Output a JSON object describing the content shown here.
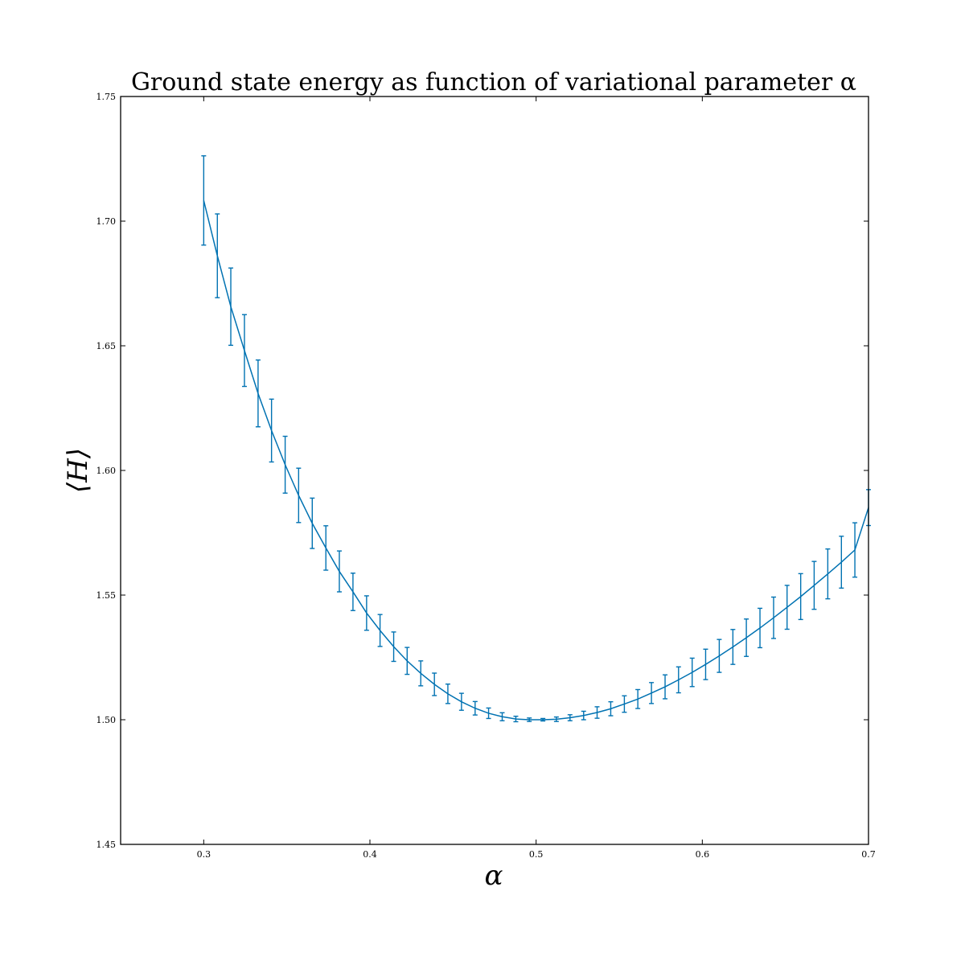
{
  "chart_data": {
    "type": "line",
    "title": "Ground state energy as function of variational parameter α",
    "xlabel": "α",
    "ylabel": "⟨H⟩",
    "xlim": [
      0.25,
      0.7
    ],
    "ylim": [
      1.45,
      1.75
    ],
    "xticks": [
      "0.3",
      "0.4",
      "0.5",
      "0.6",
      "0.7"
    ],
    "yticks": [
      "1.45",
      "1.50",
      "1.55",
      "1.60",
      "1.65",
      "1.70",
      "1.75"
    ],
    "grid": false,
    "color": "#0072b2",
    "series": [
      {
        "x": [
          0.3,
          0.3082,
          0.3163,
          0.3245,
          0.3327,
          0.3408,
          0.349,
          0.3571,
          0.3653,
          0.3735,
          0.3816,
          0.3898,
          0.398,
          0.4061,
          0.4143,
          0.4224,
          0.4306,
          0.4388,
          0.4469,
          0.4551,
          0.4633,
          0.4714,
          0.4796,
          0.4878,
          0.4959,
          0.5041,
          0.5122,
          0.5204,
          0.5286,
          0.5367,
          0.5449,
          0.5531,
          0.5612,
          0.5694,
          0.5776,
          0.5857,
          0.5939,
          0.602,
          0.6102,
          0.6184,
          0.6265,
          0.6347,
          0.6429,
          0.651,
          0.6592,
          0.6673,
          0.6755,
          0.6837,
          0.6918,
          0.7
        ],
        "y": [
          1.7083,
          1.6861,
          1.6657,
          1.6481,
          1.6309,
          1.616,
          1.6023,
          1.59,
          1.5788,
          1.5689,
          1.5595,
          1.5513,
          1.5428,
          1.5358,
          1.5293,
          1.5236,
          1.5186,
          1.5142,
          1.5104,
          1.5072,
          1.5046,
          1.5026,
          1.5012,
          1.5003,
          1.5,
          1.5,
          1.5002,
          1.5008,
          1.5017,
          1.5029,
          1.5044,
          1.5063,
          1.5083,
          1.5107,
          1.5132,
          1.516,
          1.519,
          1.5222,
          1.5256,
          1.5292,
          1.5329,
          1.5368,
          1.5409,
          1.5451,
          1.5494,
          1.5539,
          1.5585,
          1.5632,
          1.5681,
          1.5851
        ],
        "yerr": [
          0.0179,
          0.0168,
          0.0155,
          0.0144,
          0.0134,
          0.0126,
          0.0114,
          0.0109,
          0.0101,
          0.0089,
          0.0082,
          0.0075,
          0.0069,
          0.0064,
          0.0059,
          0.0054,
          0.005,
          0.0045,
          0.0039,
          0.0034,
          0.0027,
          0.0021,
          0.0016,
          0.0011,
          0.0007,
          0.0005,
          0.0009,
          0.0012,
          0.0017,
          0.0023,
          0.0028,
          0.0033,
          0.0038,
          0.0042,
          0.0048,
          0.0052,
          0.0057,
          0.0061,
          0.0066,
          0.007,
          0.0075,
          0.0079,
          0.0083,
          0.0088,
          0.0092,
          0.0096,
          0.01,
          0.0104,
          0.0109,
          0.0072
        ]
      }
    ]
  }
}
